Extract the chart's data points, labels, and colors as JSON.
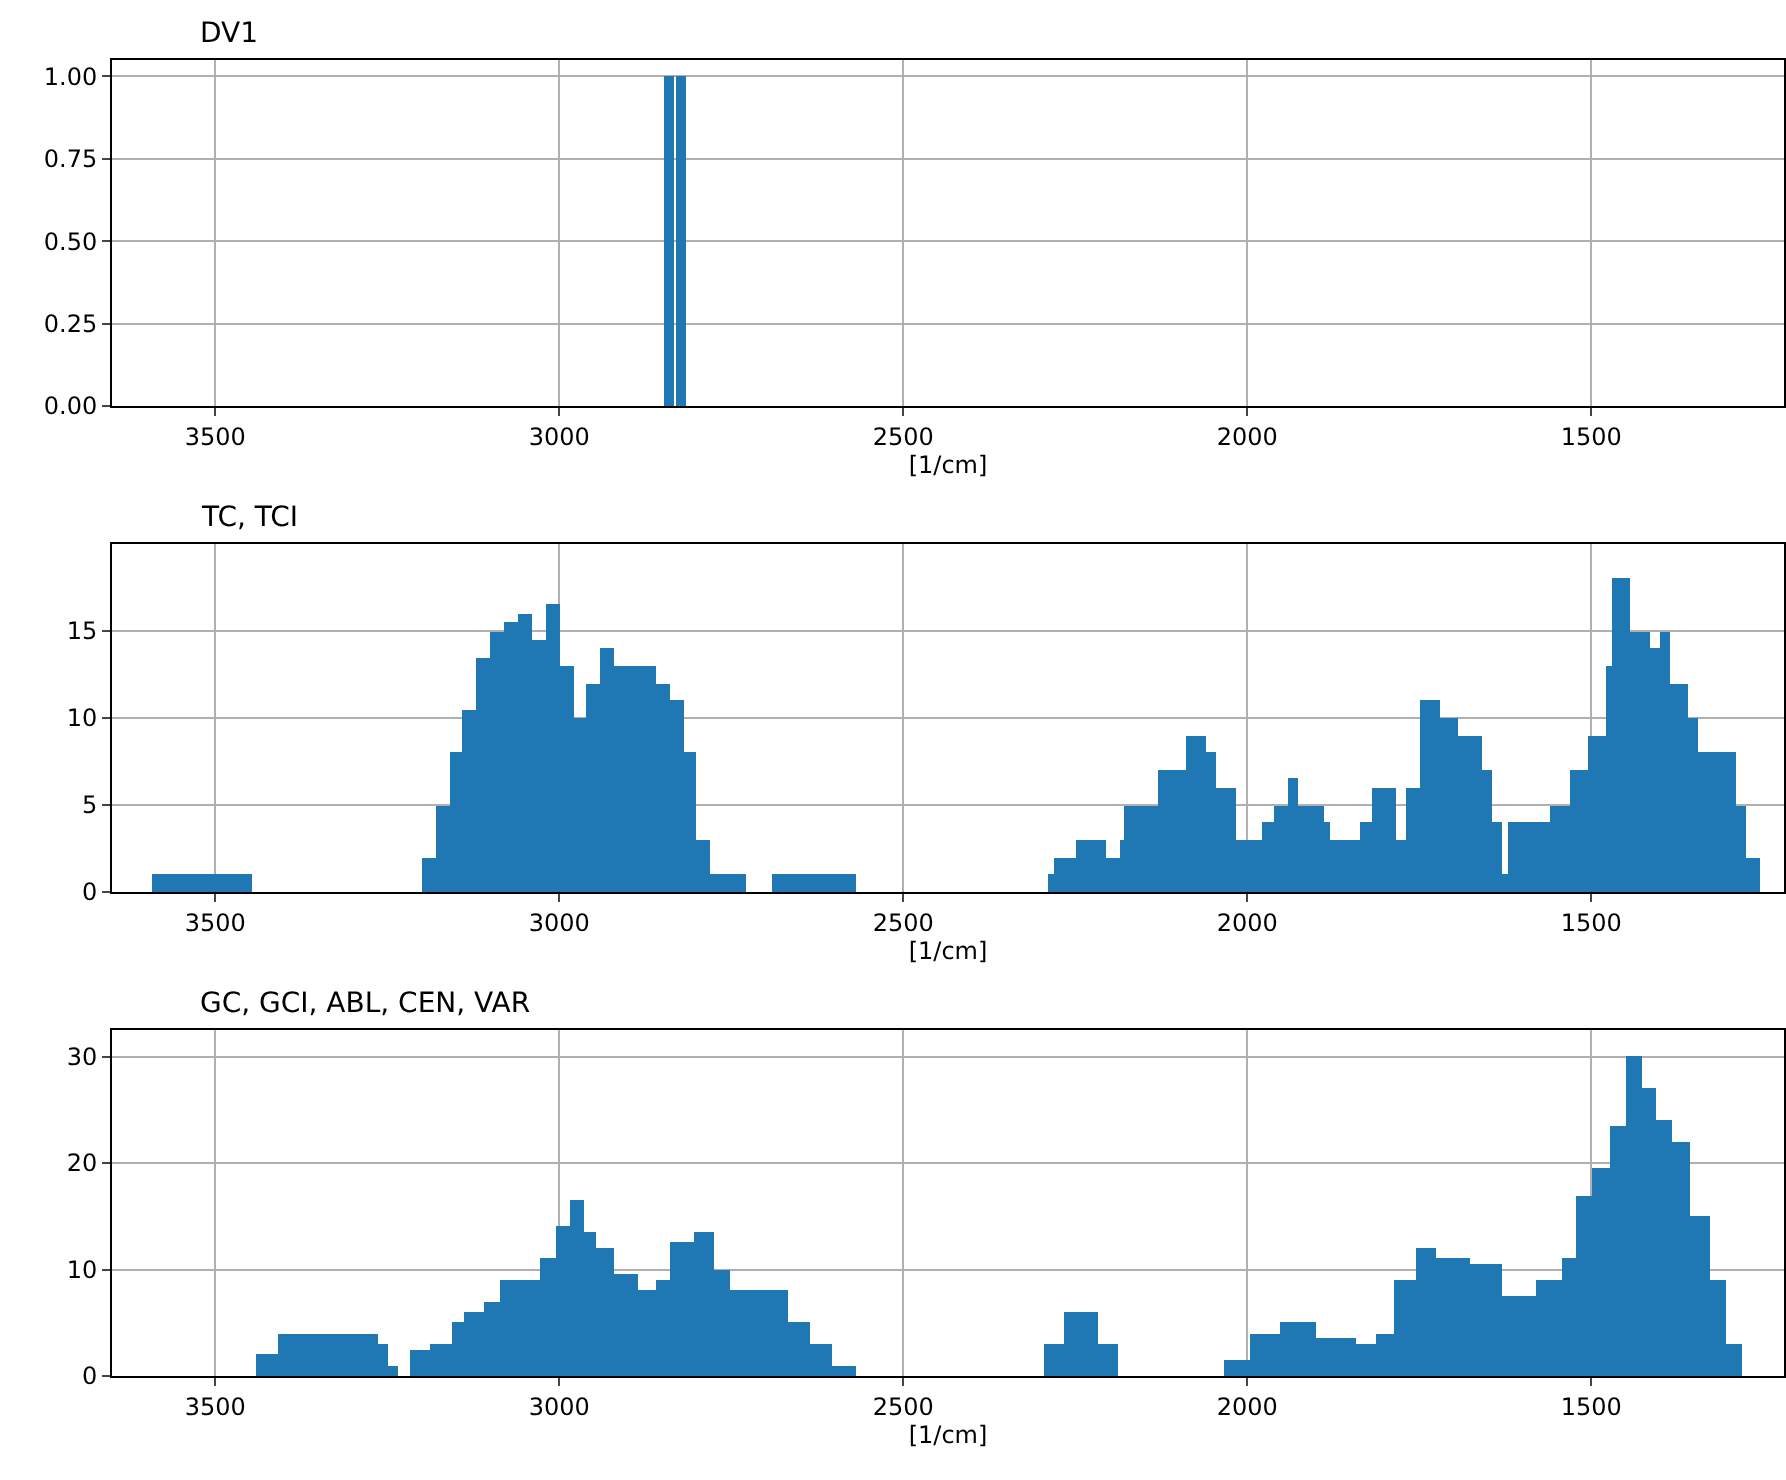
{
  "chart_data": [
    {
      "type": "histogram",
      "title": "DV1",
      "xlabel": "[1/cm]",
      "color": "#1f77b4",
      "bins": [
        2848,
        2832,
        2830,
        2823,
        2821,
        2815
      ],
      "values": [
        1,
        0,
        1,
        0,
        1
      ],
      "xlim": [
        3650,
        1220
      ],
      "xticks": [
        3500,
        3000,
        2500,
        2000,
        1500
      ],
      "ylim": [
        0,
        1.05
      ],
      "yticks": [
        {
          "value": 0,
          "label": "0.00"
        },
        {
          "value": 0.25,
          "label": "0.25"
        },
        {
          "value": 0.5,
          "label": "0.50"
        },
        {
          "value": 0.75,
          "label": "0.75"
        },
        {
          "value": 1,
          "label": "1.00"
        }
      ],
      "grid": true
    },
    {
      "type": "histogram",
      "title": "TC, TCI",
      "xlabel": "[1/cm]",
      "color": "#1f77b4",
      "bins": [
        3592,
        3447,
        3200,
        3180,
        3160,
        3140,
        3120,
        3100,
        3080,
        3060,
        3040,
        3020,
        3000,
        2980,
        2960,
        2940,
        2920,
        2900,
        2880,
        2860,
        2840,
        2820,
        2800,
        2780,
        2760,
        2730,
        2690,
        2570,
        2290,
        2280,
        2250,
        2205,
        2185,
        2180,
        2130,
        2090,
        2060,
        2045,
        2015,
        1980,
        1960,
        1940,
        1925,
        1890,
        1880,
        1835,
        1820,
        1785,
        1770,
        1750,
        1720,
        1695,
        1660,
        1645,
        1630,
        1620,
        1560,
        1530,
        1505,
        1480,
        1470,
        1445,
        1415,
        1400,
        1385,
        1360,
        1345,
        1290,
        1275,
        1255
      ],
      "values": [
        1,
        0,
        2,
        5,
        8,
        10.5,
        13.5,
        15,
        15.5,
        16,
        14.5,
        16.5,
        13,
        10,
        12,
        14,
        13,
        13,
        13,
        12,
        11,
        8,
        3,
        1,
        1,
        0,
        1,
        0,
        1,
        2,
        3,
        2,
        3,
        5,
        7,
        9,
        8,
        6,
        3,
        4,
        5,
        6.5,
        5,
        4,
        3,
        4,
        6,
        3,
        6,
        11,
        10,
        9,
        7,
        4,
        1,
        4,
        5,
        7,
        9,
        13,
        18,
        15,
        14,
        15,
        12,
        10,
        8,
        5,
        2
      ],
      "xlim": [
        3650,
        1220
      ],
      "xticks": [
        3500,
        3000,
        2500,
        2000,
        1500
      ],
      "ylim": [
        0,
        20
      ],
      "yticks": [
        0,
        5,
        10,
        15
      ],
      "grid": true
    },
    {
      "type": "histogram",
      "title": "GC, GCI, ABL, CEN, VAR",
      "xlabel": "[1/cm]",
      "color": "#1f77b4",
      "bins": [
        3442,
        3408,
        3264,
        3250,
        3235,
        3218,
        3188,
        3155,
        3138,
        3109,
        3087,
        3027,
        3005,
        2985,
        2964,
        2947,
        2920,
        2887,
        2858,
        2838,
        2805,
        2776,
        2752,
        2669,
        2636,
        2604,
        2570,
        2295,
        2266,
        2218,
        2189,
        2033,
        1996,
        1952,
        1899,
        1841,
        1812,
        1788,
        1754,
        1725,
        1677,
        1629,
        1580,
        1542,
        1522,
        1498,
        1474,
        1450,
        1426,
        1406,
        1382,
        1358,
        1329,
        1305,
        1281
      ],
      "values": [
        2,
        4,
        3,
        1,
        0,
        2.5,
        3,
        5,
        6,
        7,
        9,
        11,
        14,
        16.5,
        13.5,
        12,
        9.5,
        8,
        9,
        12.5,
        13.5,
        10,
        8,
        5,
        3,
        1,
        0,
        3,
        6,
        3,
        0,
        1.5,
        4,
        5,
        3.5,
        3,
        4,
        9,
        12,
        11,
        10.5,
        7.5,
        9,
        11,
        17,
        19.5,
        23.5,
        30,
        27,
        24,
        22,
        15,
        9,
        3
      ],
      "xlim": [
        3650,
        1220
      ],
      "xticks": [
        3500,
        3000,
        2500,
        2000,
        1500
      ],
      "ylim": [
        0,
        32.5
      ],
      "yticks": [
        0,
        10,
        20,
        30
      ],
      "grid": true
    }
  ]
}
